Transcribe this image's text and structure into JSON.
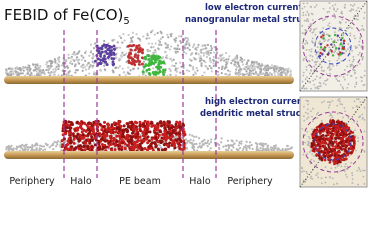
{
  "title": {
    "main": "FEBID of Fe(CO)",
    "subscript": "5"
  },
  "top_panel": {
    "line1": "low electron current -",
    "line2": "nanogranular metal structure"
  },
  "bottom_panel": {
    "line1": "high electron current -",
    "line2": "dendritic metal structure"
  },
  "regions": [
    "Periphery",
    "Halo",
    "PE beam",
    "Halo",
    "Periphery"
  ]
}
